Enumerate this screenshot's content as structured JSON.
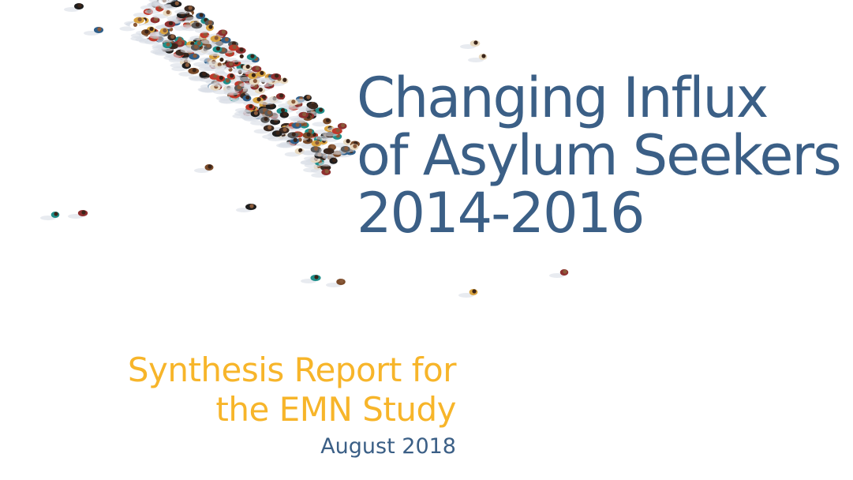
{
  "cover": {
    "title_lines": [
      "Changing Influx",
      "of Asylum Seekers",
      "2014-2016"
    ],
    "subtitle_lines": [
      "Synthesis Report for",
      "the EMN Study"
    ],
    "date": "August 2018"
  },
  "colors": {
    "title": "#3b5f86",
    "subtitle": "#f7b52a",
    "date": "#3b5f86"
  },
  "image": {
    "description_icon": "crowd-aerial-image"
  }
}
